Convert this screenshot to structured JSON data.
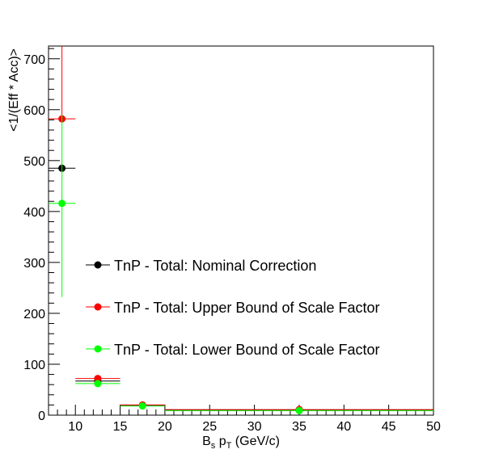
{
  "chart_data": {
    "type": "scatter",
    "title": "",
    "xlabel": "B",
    "xlabel_sub1": "s",
    "xlabel_mid": " p",
    "xlabel_sub2": "T",
    "xlabel_tail": " (GeV/c)",
    "ylabel": "<1/(Eff * Acc)>",
    "xlim": [
      7,
      50
    ],
    "ylim": [
      0,
      725
    ],
    "x_ticks": [
      10,
      15,
      20,
      25,
      30,
      35,
      40,
      45,
      50
    ],
    "y_ticks": [
      0,
      100,
      200,
      300,
      400,
      500,
      600,
      700
    ],
    "grid": false,
    "legend_position": "center",
    "series": [
      {
        "name": "TnP - Total: Nominal Correction",
        "color": "#000000",
        "points": [
          {
            "x": 8.5,
            "xlo": 7,
            "xhi": 10,
            "y": 485,
            "ylo": 485,
            "yhi": 485
          },
          {
            "x": 12.5,
            "xlo": 10,
            "xhi": 15,
            "y": 67,
            "ylo": 67,
            "yhi": 67
          },
          {
            "x": 17.5,
            "xlo": 15,
            "xhi": 20,
            "y": 19,
            "ylo": 19,
            "yhi": 19
          },
          {
            "x": 35,
            "xlo": 20,
            "xhi": 50,
            "y": 10,
            "ylo": 10,
            "yhi": 10
          }
        ]
      },
      {
        "name": "TnP - Total: Upper Bound of Scale Factor",
        "color": "#ff0000",
        "points": [
          {
            "x": 8.5,
            "xlo": 7,
            "xhi": 10,
            "y": 582,
            "ylo": 582,
            "yhi": 725
          },
          {
            "x": 12.5,
            "xlo": 10,
            "xhi": 15,
            "y": 72,
            "ylo": 72,
            "yhi": 72
          },
          {
            "x": 17.5,
            "xlo": 15,
            "xhi": 20,
            "y": 20,
            "ylo": 20,
            "yhi": 20
          },
          {
            "x": 35,
            "xlo": 20,
            "xhi": 50,
            "y": 11,
            "ylo": 11,
            "yhi": 11
          }
        ]
      },
      {
        "name": "TnP - Total: Lower Bound of Scale Factor",
        "color": "#00ff00",
        "points": [
          {
            "x": 8.5,
            "xlo": 7,
            "xhi": 10,
            "y": 416,
            "ylo": 232,
            "yhi": 590
          },
          {
            "x": 12.5,
            "xlo": 10,
            "xhi": 15,
            "y": 62,
            "ylo": 62,
            "yhi": 62
          },
          {
            "x": 17.5,
            "xlo": 15,
            "xhi": 20,
            "y": 18,
            "ylo": 18,
            "yhi": 18
          },
          {
            "x": 35,
            "xlo": 20,
            "xhi": 50,
            "y": 9,
            "ylo": 9,
            "yhi": 9
          }
        ]
      }
    ]
  }
}
